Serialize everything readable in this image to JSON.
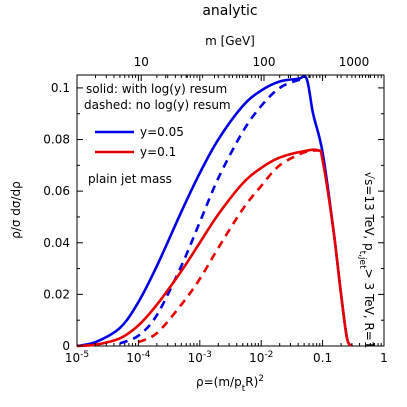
{
  "chart_data": {
    "type": "line",
    "title": "analytic",
    "xlabel": "ρ=(m/p<sub>t</sub>R)<sup>2</sup>",
    "ylabel": "ρ/σ dσ/dρ",
    "top_axis_label": "m [GeV]",
    "x_scale": "log",
    "xlim": [
      1e-05,
      1
    ],
    "ylim": [
      0,
      0.105
    ],
    "x_ticks": [
      {
        "value": 1e-05,
        "base": "10",
        "exp": "-5"
      },
      {
        "value": 0.0001,
        "base": "10",
        "exp": "-4"
      },
      {
        "value": 0.001,
        "base": "10",
        "exp": "-3"
      },
      {
        "value": 0.01,
        "base": "10",
        "exp": "-2"
      },
      {
        "value": 0.1,
        "base": "0.1",
        "exp": ""
      },
      {
        "value": 1,
        "base": "1",
        "exp": ""
      }
    ],
    "y_ticks": [
      {
        "value": 0,
        "label": "0"
      },
      {
        "value": 0.02,
        "label": "0.02"
      },
      {
        "value": 0.04,
        "label": "0.04"
      },
      {
        "value": 0.06,
        "label": "0.06"
      },
      {
        "value": 0.08,
        "label": "0.08"
      },
      {
        "value": 0.1,
        "label": "0.1"
      }
    ],
    "top_ticks": [
      {
        "rho": 0.0001111,
        "label": "10"
      },
      {
        "rho": 0.01111,
        "label": "100"
      },
      {
        "rho": 1.111,
        "label": "1000"
      }
    ],
    "top_scale": "m = 3000 GeV × 0.4 × sqrt(ρ)",
    "annotations": {
      "style_line1": "solid:  with log(y) resum",
      "style_line2": "dashed: no log(y) resum",
      "plain": "plain jet mass",
      "side": "√s=13 TeV, p<sub>t,jet</sub>> 3 TeV, R=1"
    },
    "legend": [
      {
        "name": "y=0.05",
        "color": "#0000e6"
      },
      {
        "name": "y=0.1",
        "color": "#e60000"
      }
    ],
    "series": [
      {
        "name": "y=0.05 solid",
        "color": "#0000e6",
        "dashed": false,
        "points": [
          [
            1e-05,
            0
          ],
          [
            2e-05,
            0.0015
          ],
          [
            5e-05,
            0.007
          ],
          [
            0.0001,
            0.017
          ],
          [
            0.0002,
            0.031
          ],
          [
            0.0005,
            0.052
          ],
          [
            0.001,
            0.067
          ],
          [
            0.002,
            0.08
          ],
          [
            0.005,
            0.093
          ],
          [
            0.01,
            0.099
          ],
          [
            0.02,
            0.1025
          ],
          [
            0.04,
            0.1035
          ],
          [
            0.055,
            0.1035
          ],
          [
            0.07,
            0.09
          ],
          [
            0.1,
            0.075
          ],
          [
            0.15,
            0.045
          ],
          [
            0.2,
            0.02
          ],
          [
            0.25,
            0.003
          ],
          [
            0.3,
            0
          ]
        ]
      },
      {
        "name": "y=0.05 dashed",
        "color": "#0000e6",
        "dashed": true,
        "points": [
          [
            5e-05,
            0.001
          ],
          [
            0.0001,
            0.004
          ],
          [
            0.0002,
            0.012
          ],
          [
            0.0005,
            0.031
          ],
          [
            0.001,
            0.048
          ],
          [
            0.002,
            0.065
          ],
          [
            0.005,
            0.083
          ],
          [
            0.01,
            0.093
          ],
          [
            0.02,
            0.1
          ],
          [
            0.04,
            0.103
          ],
          [
            0.055,
            0.1035
          ]
        ]
      },
      {
        "name": "y=0.1 solid",
        "color": "#e60000",
        "dashed": false,
        "points": [
          [
            1e-05,
            0
          ],
          [
            2e-05,
            0.0005
          ],
          [
            5e-05,
            0.003
          ],
          [
            0.0001,
            0.008
          ],
          [
            0.0002,
            0.016
          ],
          [
            0.0005,
            0.029
          ],
          [
            0.001,
            0.04
          ],
          [
            0.002,
            0.051
          ],
          [
            0.005,
            0.063
          ],
          [
            0.01,
            0.069
          ],
          [
            0.02,
            0.073
          ],
          [
            0.05,
            0.0755
          ],
          [
            0.085,
            0.0758
          ],
          [
            0.1,
            0.072
          ],
          [
            0.15,
            0.045
          ],
          [
            0.2,
            0.02
          ],
          [
            0.25,
            0.003
          ],
          [
            0.3,
            0
          ]
        ]
      },
      {
        "name": "y=0.1 dashed",
        "color": "#e60000",
        "dashed": true,
        "points": [
          [
            0.0001,
            0.0015
          ],
          [
            0.0002,
            0.005
          ],
          [
            0.0005,
            0.016
          ],
          [
            0.001,
            0.026
          ],
          [
            0.002,
            0.038
          ],
          [
            0.005,
            0.053
          ],
          [
            0.01,
            0.062
          ],
          [
            0.02,
            0.07
          ],
          [
            0.05,
            0.075
          ],
          [
            0.085,
            0.0758
          ]
        ]
      }
    ]
  }
}
